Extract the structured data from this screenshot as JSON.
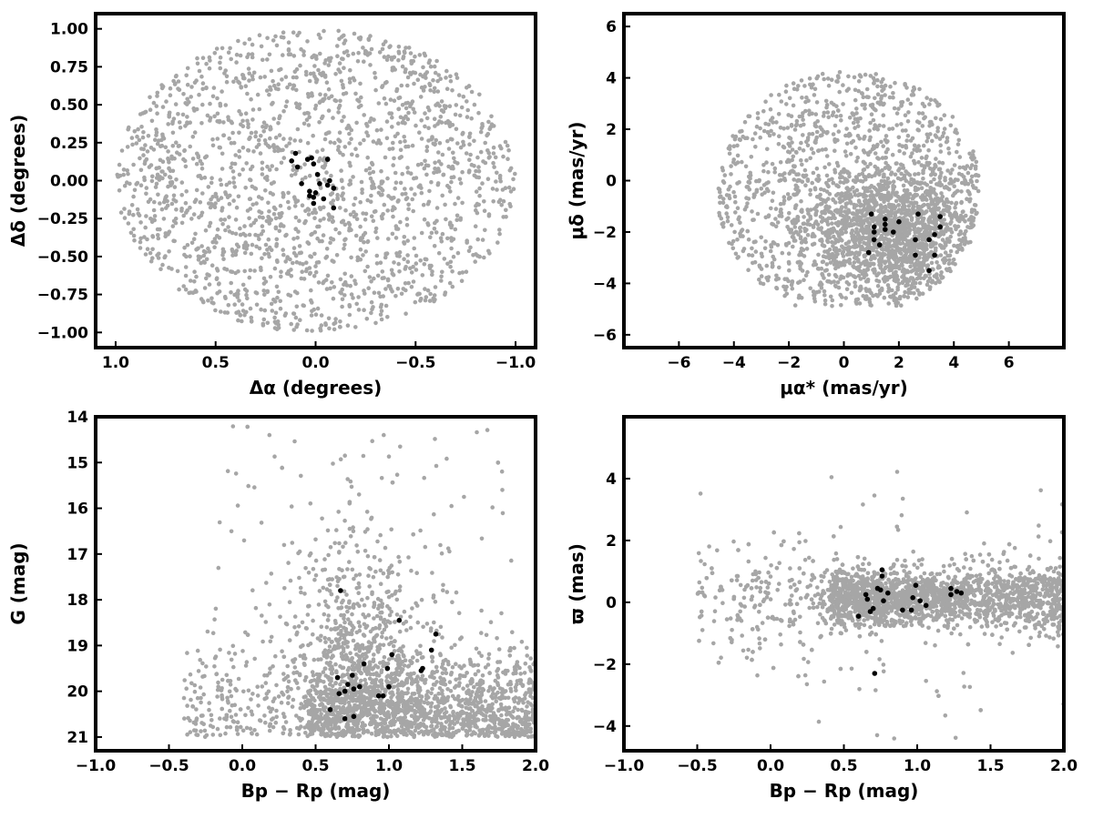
{
  "colors": {
    "field": "#a6a6a6",
    "members": "#000000",
    "axes": "#000000"
  },
  "chart_data": [
    {
      "type": "scatter",
      "xlabel": "Δα (degrees)",
      "ylabel": "Δδ (degrees)",
      "xlim": [
        1.1,
        -1.1
      ],
      "ylim": [
        -1.1,
        1.1
      ],
      "xticks": [
        1.0,
        0.5,
        0.0,
        -0.5,
        -1.0
      ],
      "xtick_labels": [
        "1.0",
        "0.5",
        "0.0",
        "−0.5",
        "−1.0"
      ],
      "yticks": [
        -1.0,
        -0.75,
        -0.5,
        -0.25,
        0.0,
        0.25,
        0.5,
        0.75,
        1.0
      ],
      "ytick_labels": [
        "−1.00",
        "−0.75",
        "−0.50",
        "−0.25",
        "0.00",
        "0.25",
        "0.50",
        "0.75",
        "1.00"
      ],
      "grid": false,
      "series": [
        {
          "kind": "field",
          "distribution": "uniform_disk",
          "center": [
            0,
            0
          ],
          "radius": 1.0,
          "count": 1900
        },
        {
          "kind": "members",
          "points": [
            [
              0.1,
              0.18
            ],
            [
              0.12,
              0.13
            ],
            [
              0.09,
              0.09
            ],
            [
              0.04,
              0.14
            ],
            [
              0.02,
              0.15
            ],
            [
              0.01,
              0.11
            ],
            [
              -0.01,
              0.04
            ],
            [
              -0.06,
              0.14
            ],
            [
              0.07,
              -0.02
            ],
            [
              -0.02,
              -0.02
            ],
            [
              -0.07,
              0.0
            ],
            [
              -0.09,
              -0.05
            ],
            [
              0.03,
              -0.07
            ],
            [
              0.0,
              -0.08
            ],
            [
              0.03,
              -0.1
            ],
            [
              0.01,
              -0.11
            ],
            [
              -0.04,
              -0.12
            ],
            [
              0.01,
              -0.15
            ],
            [
              -0.09,
              -0.18
            ],
            [
              -0.06,
              -0.03
            ]
          ]
        }
      ]
    },
    {
      "type": "scatter",
      "xlabel": "μα* (mas/yr)",
      "ylabel": "μδ (mas/yr)",
      "xlim": [
        -8,
        8
      ],
      "ylim": [
        -6.5,
        6.5
      ],
      "xticks": [
        -6,
        -4,
        -2,
        0,
        2,
        4,
        6
      ],
      "xtick_labels": [
        "−6",
        "−4",
        "−2",
        "0",
        "2",
        "4",
        "6"
      ],
      "yticks": [
        -6,
        -4,
        -2,
        0,
        2,
        4,
        6
      ],
      "ytick_labels": [
        "−6",
        "−4",
        "−2",
        "0",
        "2",
        "4",
        "6"
      ],
      "grid": false,
      "series": [
        {
          "kind": "field",
          "distribution": "disk_plus_concentration",
          "disk_center": [
            0.2,
            -0.5
          ],
          "disk_radius": 4.8,
          "concentration_center": [
            1.8,
            -2.0
          ],
          "concentration_spread": [
            1.5,
            1.3
          ],
          "xmax": 4.9,
          "ymin": -4.9,
          "count": 2600
        },
        {
          "kind": "members",
          "points": [
            [
              1.0,
              -1.3
            ],
            [
              1.1,
              -1.8
            ],
            [
              1.1,
              -2.0
            ],
            [
              1.1,
              -2.3
            ],
            [
              1.3,
              -2.5
            ],
            [
              1.5,
              -1.5
            ],
            [
              1.5,
              -1.7
            ],
            [
              1.5,
              -1.9
            ],
            [
              1.8,
              -2.0
            ],
            [
              2.0,
              -1.6
            ],
            [
              2.7,
              -1.3
            ],
            [
              2.6,
              -2.3
            ],
            [
              2.6,
              -2.9
            ],
            [
              3.1,
              -2.3
            ],
            [
              3.3,
              -2.1
            ],
            [
              3.5,
              -1.8
            ],
            [
              3.5,
              -1.4
            ],
            [
              3.1,
              -3.5
            ],
            [
              3.3,
              -2.9
            ],
            [
              0.9,
              -2.8
            ]
          ]
        }
      ]
    },
    {
      "type": "scatter",
      "xlabel": "Bp − Rp (mag)",
      "ylabel": "G (mag)",
      "xlim": [
        -1.0,
        2.0
      ],
      "ylim": [
        21.3,
        14.0
      ],
      "xticks": [
        -1.0,
        -0.5,
        0.0,
        0.5,
        1.0,
        1.5,
        2.0
      ],
      "xtick_labels": [
        "−1.0",
        "−0.5",
        "0.0",
        "0.5",
        "1.0",
        "1.5",
        "2.0"
      ],
      "yticks": [
        14,
        15,
        16,
        17,
        18,
        19,
        20,
        21
      ],
      "ytick_labels": [
        "14",
        "15",
        "16",
        "17",
        "18",
        "19",
        "20",
        "21"
      ],
      "grid": false,
      "series": [
        {
          "kind": "field",
          "distribution": "cmd",
          "count": 2600
        },
        {
          "kind": "members",
          "points": [
            [
              0.7,
              20.6
            ],
            [
              0.76,
              20.55
            ],
            [
              0.6,
              20.4
            ],
            [
              0.66,
              20.05
            ],
            [
              0.7,
              20.0
            ],
            [
              0.72,
              19.85
            ],
            [
              0.76,
              19.95
            ],
            [
              0.8,
              19.9
            ],
            [
              0.65,
              19.7
            ],
            [
              0.75,
              19.65
            ],
            [
              0.96,
              20.1
            ],
            [
              0.93,
              20.1
            ],
            [
              1.0,
              19.9
            ],
            [
              0.99,
              19.5
            ],
            [
              1.02,
              19.2
            ],
            [
              0.83,
              19.4
            ],
            [
              1.22,
              19.55
            ],
            [
              1.23,
              19.5
            ],
            [
              1.29,
              19.1
            ],
            [
              1.32,
              18.75
            ],
            [
              1.07,
              18.45
            ],
            [
              0.67,
              17.8
            ]
          ]
        }
      ]
    },
    {
      "type": "scatter",
      "xlabel": "Bp − Rp (mag)",
      "ylabel": "ϖ (mas)",
      "xlim": [
        -1.0,
        2.0
      ],
      "ylim": [
        -4.8,
        6.0
      ],
      "xticks": [
        -1.0,
        -0.5,
        0.0,
        0.5,
        1.0,
        1.5,
        2.0
      ],
      "xtick_labels": [
        "−1.0",
        "−0.5",
        "0.0",
        "0.5",
        "1.0",
        "1.5",
        "2.0"
      ],
      "yticks": [
        -4,
        -2,
        0,
        2,
        4
      ],
      "ytick_labels": [
        "−4",
        "−2",
        "0",
        "2",
        "4"
      ],
      "grid": false,
      "series": [
        {
          "kind": "field",
          "distribution": "parallax_band",
          "count": 2600
        },
        {
          "kind": "members",
          "points": [
            [
              0.6,
              -0.45
            ],
            [
              0.65,
              0.25
            ],
            [
              0.66,
              0.1
            ],
            [
              0.68,
              -0.3
            ],
            [
              0.7,
              -0.2
            ],
            [
              0.73,
              0.45
            ],
            [
              0.76,
              0.85
            ],
            [
              0.76,
              1.05
            ],
            [
              0.75,
              0.4
            ],
            [
              0.77,
              0.05
            ],
            [
              0.8,
              0.3
            ],
            [
              0.9,
              -0.25
            ],
            [
              0.96,
              -0.25
            ],
            [
              0.97,
              0.15
            ],
            [
              0.99,
              0.55
            ],
            [
              1.02,
              0.05
            ],
            [
              1.06,
              -0.1
            ],
            [
              1.23,
              0.45
            ],
            [
              1.27,
              0.35
            ],
            [
              1.3,
              0.3
            ],
            [
              1.23,
              0.25
            ],
            [
              0.71,
              -2.3
            ]
          ]
        }
      ]
    }
  ]
}
